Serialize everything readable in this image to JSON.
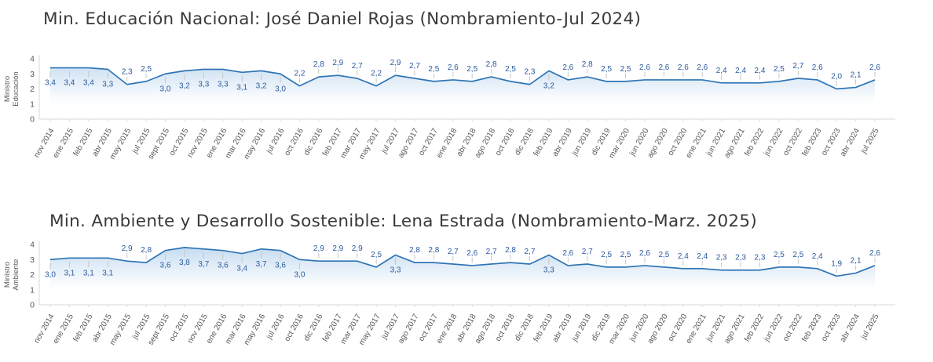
{
  "colors": {
    "line": "#2e74b5",
    "fill_top": "#bdd7ee",
    "fill_mid": "#ddeaf7",
    "data_label": "#2c5aa0",
    "axis_line": "#d9d9d9",
    "axis_text": "#595959",
    "title_text": "#3a3a3a",
    "leader_tick": "#c6c6c6"
  },
  "chart_data": [
    {
      "type": "area",
      "title": "Min. Educación Nacional: José Daniel Rojas (Nombramiento-Jul 2024)",
      "ylabel": "Ministro Educación",
      "ylabel_lines": [
        "Ministro",
        "Educación"
      ],
      "xlabel": "",
      "ylim": [
        0,
        4
      ],
      "yticks": [
        4,
        3,
        2,
        1,
        0
      ],
      "grid": false,
      "legend": false,
      "decimal_separator": ",",
      "data_labels": true,
      "categories": [
        "nov 2014",
        "ene 2015",
        "feb 2015",
        "abr 2015",
        "may 2015",
        "jul 2015",
        "sept 2015",
        "oct 2015",
        "nov 2015",
        "ene 2016",
        "mar 2016",
        "may 2016",
        "jul 2016",
        "oct 2016",
        "dic 2016",
        "feb 2017",
        "mar 2017",
        "may 2017",
        "jul 2017",
        "ago 2017",
        "oct 2017",
        "ene 2018",
        "abr 2018",
        "ago 2018",
        "oct 2018",
        "dic 2018",
        "feb 2019",
        "abr 2019",
        "jun 2019",
        "dic 2019",
        "mar 2020",
        "jun 2020",
        "ago 2020",
        "oct 2020",
        "ene 2021",
        "jun 2021",
        "ago 2021",
        "feb 2022",
        "jun 2022",
        "oct 2022",
        "feb 2023",
        "oct 2023",
        "abr 2024",
        "jul 2025"
      ],
      "values": [
        3.4,
        3.4,
        3.4,
        3.3,
        2.3,
        2.5,
        3.0,
        3.2,
        3.3,
        3.3,
        3.1,
        3.2,
        3.0,
        2.2,
        2.8,
        2.9,
        2.7,
        2.2,
        2.9,
        2.7,
        2.5,
        2.6,
        2.5,
        2.8,
        2.5,
        2.3,
        3.2,
        2.6,
        2.8,
        2.5,
        2.5,
        2.6,
        2.6,
        2.6,
        2.6,
        2.4,
        2.4,
        2.4,
        2.5,
        2.7,
        2.6,
        2.0,
        2.1,
        2.6
      ]
    },
    {
      "type": "area",
      "title": "Min. Ambiente y Desarrollo Sostenible: Lena Estrada (Nombramiento-Marz. 2025)",
      "ylabel": "Ministro Ambiente",
      "ylabel_lines": [
        "Ministro",
        "Ambiente"
      ],
      "xlabel": "",
      "ylim": [
        0,
        4
      ],
      "yticks": [
        4,
        3,
        2,
        1,
        0
      ],
      "grid": false,
      "legend": false,
      "decimal_separator": ",",
      "data_labels": true,
      "categories": [
        "nov 2014",
        "ene 2015",
        "feb 2015",
        "abr 2015",
        "may 2015",
        "jul 2015",
        "sept 2015",
        "oct 2015",
        "nov 2015",
        "ene 2016",
        "mar 2016",
        "may 2016",
        "jul 2016",
        "oct 2016",
        "dic 2016",
        "feb 2017",
        "mar 2017",
        "may 2017",
        "jul 2017",
        "ago 2017",
        "oct 2017",
        "ene 2018",
        "abr 2018",
        "ago 2018",
        "oct 2018",
        "dic 2018",
        "feb 2019",
        "abr 2019",
        "jun 2019",
        "dic 2019",
        "mar 2020",
        "jun 2020",
        "ago 2020",
        "oct 2020",
        "ene 2021",
        "jun 2021",
        "ago 2021",
        "feb 2022",
        "jun 2022",
        "oct 2022",
        "feb 2023",
        "oct 2023",
        "abr 2024",
        "jul 2025"
      ],
      "values": [
        3.0,
        3.1,
        3.1,
        3.1,
        2.9,
        2.8,
        3.6,
        3.8,
        3.7,
        3.6,
        3.4,
        3.7,
        3.6,
        3.0,
        2.9,
        2.9,
        2.9,
        2.5,
        3.3,
        2.8,
        2.8,
        2.7,
        2.6,
        2.7,
        2.8,
        2.7,
        3.3,
        2.6,
        2.7,
        2.5,
        2.5,
        2.6,
        2.5,
        2.4,
        2.4,
        2.3,
        2.3,
        2.3,
        2.5,
        2.5,
        2.4,
        1.9,
        2.1,
        2.6
      ]
    }
  ]
}
